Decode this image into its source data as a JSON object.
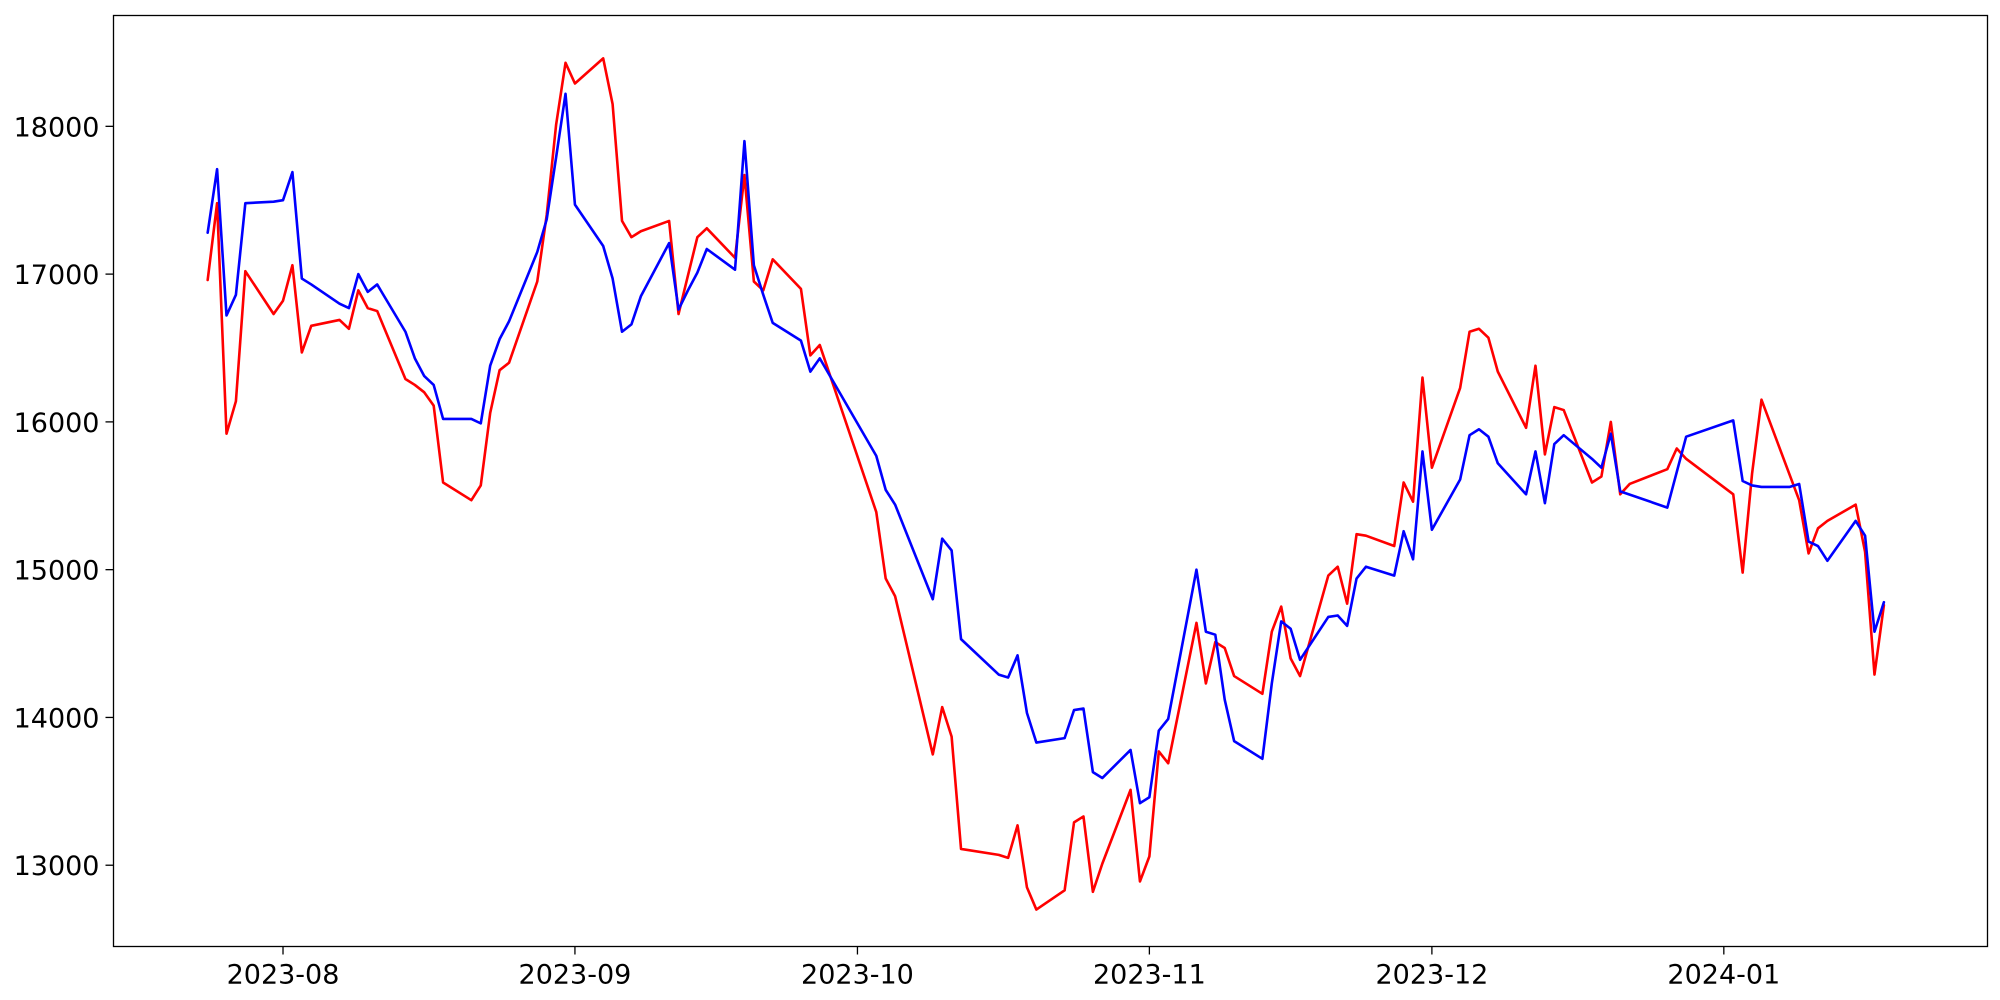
{
  "chart_data": {
    "type": "line",
    "title": "",
    "xlabel": "",
    "ylabel": "",
    "x_axis": {
      "kind": "date",
      "range": [
        "2023-07-14",
        "2024-01-29"
      ],
      "ticks": [
        {
          "date": "2023-08-01",
          "label": "2023-08"
        },
        {
          "date": "2023-09-01",
          "label": "2023-09"
        },
        {
          "date": "2023-10-01",
          "label": "2023-10"
        },
        {
          "date": "2023-11-01",
          "label": "2023-11"
        },
        {
          "date": "2023-12-01",
          "label": "2023-12"
        },
        {
          "date": "2024-01-01",
          "label": "2024-01"
        }
      ]
    },
    "y_axis": {
      "range": [
        12450,
        18750
      ],
      "ticks": [
        {
          "value": 13000,
          "label": "13000"
        },
        {
          "value": 14000,
          "label": "14000"
        },
        {
          "value": 15000,
          "label": "15000"
        },
        {
          "value": 16000,
          "label": "16000"
        },
        {
          "value": 17000,
          "label": "17000"
        },
        {
          "value": 18000,
          "label": "18000"
        }
      ]
    },
    "grid": false,
    "legend": "none",
    "series": [
      {
        "color": "#ff0000",
        "points": [
          [
            "2023-07-24",
            16960
          ],
          [
            "2023-07-25",
            17480
          ],
          [
            "2023-07-26",
            15920
          ],
          [
            "2023-07-27",
            16140
          ],
          [
            "2023-07-28",
            17020
          ],
          [
            "2023-07-31",
            16730
          ],
          [
            "2023-08-01",
            16820
          ],
          [
            "2023-08-02",
            17060
          ],
          [
            "2023-08-03",
            16470
          ],
          [
            "2023-08-04",
            16650
          ],
          [
            "2023-08-07",
            16690
          ],
          [
            "2023-08-08",
            16630
          ],
          [
            "2023-08-09",
            16890
          ],
          [
            "2023-08-10",
            16770
          ],
          [
            "2023-08-11",
            16750
          ],
          [
            "2023-08-14",
            16290
          ],
          [
            "2023-08-15",
            16250
          ],
          [
            "2023-08-16",
            16200
          ],
          [
            "2023-08-17",
            16110
          ],
          [
            "2023-08-18",
            15590
          ],
          [
            "2023-08-21",
            15470
          ],
          [
            "2023-08-22",
            15570
          ],
          [
            "2023-08-23",
            16060
          ],
          [
            "2023-08-24",
            16350
          ],
          [
            "2023-08-25",
            16400
          ],
          [
            "2023-08-28",
            16950
          ],
          [
            "2023-08-29",
            17400
          ],
          [
            "2023-08-30",
            18010
          ],
          [
            "2023-08-31",
            18430
          ],
          [
            "2023-09-01",
            18290
          ],
          [
            "2023-09-04",
            18460
          ],
          [
            "2023-09-05",
            18150
          ],
          [
            "2023-09-06",
            17360
          ],
          [
            "2023-09-07",
            17250
          ],
          [
            "2023-09-08",
            17290
          ],
          [
            "2023-09-11",
            17360
          ],
          [
            "2023-09-12",
            16730
          ],
          [
            "2023-09-13",
            16990
          ],
          [
            "2023-09-14",
            17250
          ],
          [
            "2023-09-15",
            17310
          ],
          [
            "2023-09-18",
            17110
          ],
          [
            "2023-09-19",
            17670
          ],
          [
            "2023-09-20",
            16950
          ],
          [
            "2023-09-21",
            16890
          ],
          [
            "2023-09-22",
            17100
          ],
          [
            "2023-09-25",
            16900
          ],
          [
            "2023-09-26",
            16450
          ],
          [
            "2023-09-27",
            16520
          ],
          [
            "2023-10-03",
            15390
          ],
          [
            "2023-10-04",
            14940
          ],
          [
            "2023-10-05",
            14820
          ],
          [
            "2023-10-09",
            13750
          ],
          [
            "2023-10-10",
            14070
          ],
          [
            "2023-10-11",
            13870
          ],
          [
            "2023-10-12",
            13110
          ],
          [
            "2023-10-16",
            13070
          ],
          [
            "2023-10-17",
            13050
          ],
          [
            "2023-10-18",
            13270
          ],
          [
            "2023-10-19",
            12850
          ],
          [
            "2023-10-20",
            12700
          ],
          [
            "2023-10-23",
            12830
          ],
          [
            "2023-10-24",
            13290
          ],
          [
            "2023-10-25",
            13330
          ],
          [
            "2023-10-26",
            12820
          ],
          [
            "2023-10-27",
            13010
          ],
          [
            "2023-10-30",
            13510
          ],
          [
            "2023-10-31",
            12890
          ],
          [
            "2023-11-01",
            13060
          ],
          [
            "2023-11-02",
            13770
          ],
          [
            "2023-11-03",
            13690
          ],
          [
            "2023-11-06",
            14640
          ],
          [
            "2023-11-07",
            14230
          ],
          [
            "2023-11-08",
            14510
          ],
          [
            "2023-11-09",
            14470
          ],
          [
            "2023-11-10",
            14280
          ],
          [
            "2023-11-13",
            14160
          ],
          [
            "2023-11-14",
            14580
          ],
          [
            "2023-11-15",
            14750
          ],
          [
            "2023-11-16",
            14400
          ],
          [
            "2023-11-17",
            14280
          ],
          [
            "2023-11-20",
            14960
          ],
          [
            "2023-11-21",
            15020
          ],
          [
            "2023-11-22",
            14770
          ],
          [
            "2023-11-23",
            15240
          ],
          [
            "2023-11-24",
            15230
          ],
          [
            "2023-11-27",
            15160
          ],
          [
            "2023-11-28",
            15590
          ],
          [
            "2023-11-29",
            15460
          ],
          [
            "2023-11-30",
            16300
          ],
          [
            "2023-12-01",
            15690
          ],
          [
            "2023-12-04",
            16230
          ],
          [
            "2023-12-05",
            16610
          ],
          [
            "2023-12-06",
            16630
          ],
          [
            "2023-12-07",
            16570
          ],
          [
            "2023-12-08",
            16340
          ],
          [
            "2023-12-11",
            15960
          ],
          [
            "2023-12-12",
            16380
          ],
          [
            "2023-12-13",
            15780
          ],
          [
            "2023-12-14",
            16100
          ],
          [
            "2023-12-15",
            16080
          ],
          [
            "2023-12-18",
            15590
          ],
          [
            "2023-12-19",
            15630
          ],
          [
            "2023-12-20",
            16000
          ],
          [
            "2023-12-21",
            15510
          ],
          [
            "2023-12-22",
            15580
          ],
          [
            "2023-12-26",
            15680
          ],
          [
            "2023-12-27",
            15820
          ],
          [
            "2023-12-28",
            15750
          ],
          [
            "2024-01-02",
            15510
          ],
          [
            "2024-01-03",
            14980
          ],
          [
            "2024-01-04",
            15650
          ],
          [
            "2024-01-05",
            16150
          ],
          [
            "2024-01-08",
            15640
          ],
          [
            "2024-01-09",
            15470
          ],
          [
            "2024-01-10",
            15110
          ],
          [
            "2024-01-11",
            15280
          ],
          [
            "2024-01-12",
            15330
          ],
          [
            "2024-01-15",
            15440
          ],
          [
            "2024-01-16",
            15120
          ],
          [
            "2024-01-17",
            14290
          ],
          [
            "2024-01-18",
            14760
          ]
        ]
      },
      {
        "color": "#0000ff",
        "points": [
          [
            "2023-07-24",
            17280
          ],
          [
            "2023-07-25",
            17710
          ],
          [
            "2023-07-26",
            16720
          ],
          [
            "2023-07-27",
            16860
          ],
          [
            "2023-07-28",
            17480
          ],
          [
            "2023-07-31",
            17490
          ],
          [
            "2023-08-01",
            17500
          ],
          [
            "2023-08-02",
            17690
          ],
          [
            "2023-08-03",
            16970
          ],
          [
            "2023-08-04",
            16930
          ],
          [
            "2023-08-07",
            16800
          ],
          [
            "2023-08-08",
            16770
          ],
          [
            "2023-08-09",
            17000
          ],
          [
            "2023-08-10",
            16880
          ],
          [
            "2023-08-11",
            16930
          ],
          [
            "2023-08-14",
            16610
          ],
          [
            "2023-08-15",
            16430
          ],
          [
            "2023-08-16",
            16310
          ],
          [
            "2023-08-17",
            16250
          ],
          [
            "2023-08-18",
            16020
          ],
          [
            "2023-08-21",
            16020
          ],
          [
            "2023-08-22",
            15990
          ],
          [
            "2023-08-23",
            16380
          ],
          [
            "2023-08-24",
            16560
          ],
          [
            "2023-08-25",
            16680
          ],
          [
            "2023-08-28",
            17150
          ],
          [
            "2023-08-29",
            17370
          ],
          [
            "2023-08-30",
            17790
          ],
          [
            "2023-08-31",
            18220
          ],
          [
            "2023-09-01",
            17470
          ],
          [
            "2023-09-04",
            17190
          ],
          [
            "2023-09-05",
            16970
          ],
          [
            "2023-09-06",
            16610
          ],
          [
            "2023-09-07",
            16660
          ],
          [
            "2023-09-08",
            16850
          ],
          [
            "2023-09-11",
            17210
          ],
          [
            "2023-09-12",
            16760
          ],
          [
            "2023-09-13",
            16890
          ],
          [
            "2023-09-14",
            17010
          ],
          [
            "2023-09-15",
            17170
          ],
          [
            "2023-09-18",
            17030
          ],
          [
            "2023-09-19",
            17900
          ],
          [
            "2023-09-20",
            17060
          ],
          [
            "2023-09-21",
            16860
          ],
          [
            "2023-09-22",
            16670
          ],
          [
            "2023-09-25",
            16550
          ],
          [
            "2023-09-26",
            16340
          ],
          [
            "2023-09-27",
            16430
          ],
          [
            "2023-10-03",
            15770
          ],
          [
            "2023-10-04",
            15540
          ],
          [
            "2023-10-05",
            15440
          ],
          [
            "2023-10-09",
            14800
          ],
          [
            "2023-10-10",
            15210
          ],
          [
            "2023-10-11",
            15130
          ],
          [
            "2023-10-12",
            14530
          ],
          [
            "2023-10-16",
            14290
          ],
          [
            "2023-10-17",
            14270
          ],
          [
            "2023-10-18",
            14420
          ],
          [
            "2023-10-19",
            14030
          ],
          [
            "2023-10-20",
            13830
          ],
          [
            "2023-10-23",
            13860
          ],
          [
            "2023-10-24",
            14050
          ],
          [
            "2023-10-25",
            14060
          ],
          [
            "2023-10-26",
            13630
          ],
          [
            "2023-10-27",
            13590
          ],
          [
            "2023-10-30",
            13780
          ],
          [
            "2023-10-31",
            13420
          ],
          [
            "2023-11-01",
            13460
          ],
          [
            "2023-11-02",
            13910
          ],
          [
            "2023-11-03",
            13990
          ],
          [
            "2023-11-06",
            15000
          ],
          [
            "2023-11-07",
            14580
          ],
          [
            "2023-11-08",
            14560
          ],
          [
            "2023-11-09",
            14120
          ],
          [
            "2023-11-10",
            13840
          ],
          [
            "2023-11-13",
            13720
          ],
          [
            "2023-11-14",
            14230
          ],
          [
            "2023-11-15",
            14650
          ],
          [
            "2023-11-16",
            14600
          ],
          [
            "2023-11-17",
            14390
          ],
          [
            "2023-11-20",
            14680
          ],
          [
            "2023-11-21",
            14690
          ],
          [
            "2023-11-22",
            14620
          ],
          [
            "2023-11-23",
            14940
          ],
          [
            "2023-11-24",
            15020
          ],
          [
            "2023-11-27",
            14960
          ],
          [
            "2023-11-28",
            15260
          ],
          [
            "2023-11-29",
            15070
          ],
          [
            "2023-11-30",
            15800
          ],
          [
            "2023-12-01",
            15270
          ],
          [
            "2023-12-04",
            15610
          ],
          [
            "2023-12-05",
            15910
          ],
          [
            "2023-12-06",
            15950
          ],
          [
            "2023-12-07",
            15900
          ],
          [
            "2023-12-08",
            15720
          ],
          [
            "2023-12-11",
            15510
          ],
          [
            "2023-12-12",
            15800
          ],
          [
            "2023-12-13",
            15450
          ],
          [
            "2023-12-14",
            15850
          ],
          [
            "2023-12-15",
            15910
          ],
          [
            "2023-12-18",
            15750
          ],
          [
            "2023-12-19",
            15690
          ],
          [
            "2023-12-20",
            15920
          ],
          [
            "2023-12-21",
            15530
          ],
          [
            "2023-12-26",
            15420
          ],
          [
            "2023-12-28",
            15900
          ],
          [
            "2024-01-02",
            16010
          ],
          [
            "2024-01-03",
            15600
          ],
          [
            "2024-01-04",
            15570
          ],
          [
            "2024-01-05",
            15560
          ],
          [
            "2024-01-08",
            15560
          ],
          [
            "2024-01-09",
            15580
          ],
          [
            "2024-01-10",
            15190
          ],
          [
            "2024-01-11",
            15160
          ],
          [
            "2024-01-12",
            15060
          ],
          [
            "2024-01-15",
            15330
          ],
          [
            "2024-01-16",
            15230
          ],
          [
            "2024-01-17",
            14580
          ],
          [
            "2024-01-18",
            14780
          ]
        ]
      }
    ]
  }
}
